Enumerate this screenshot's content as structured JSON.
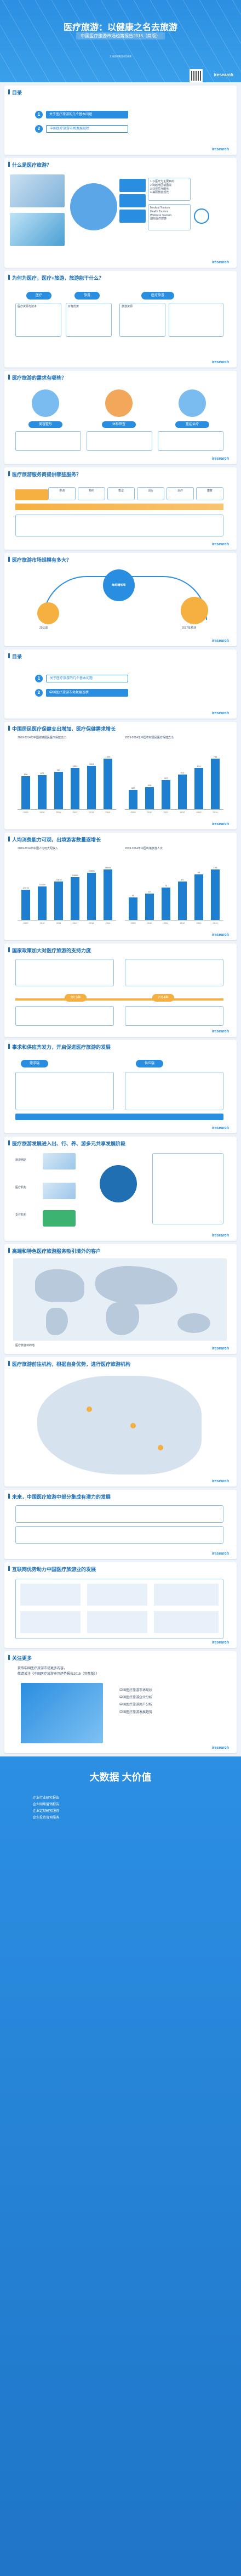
{
  "header": {
    "title": "医疗旅游：以健康之名去旅游",
    "subtitle": "中国医疗旅游市场趋势报告2015（简版）",
    "small_text": "艾瑞咨询集团研究成果",
    "brand": "iresearch"
  },
  "toc1": {
    "title": "目录",
    "items": [
      {
        "num": "1",
        "label": "关于医疗旅游的几个基本问题"
      },
      {
        "num": "2",
        "label": "中国医疗旅游市场发展现状"
      }
    ]
  },
  "s_what": {
    "title": "什么是医疗旅游？",
    "items": [
      "1 以医疗为主要目的",
      "2 跨越地区或国境",
      "3 获得医疗服务",
      "4 兼顾旅游观光"
    ],
    "right": [
      "Medical Tourism",
      "Health Tourism",
      "Wellness Tourism",
      "国际医疗旅游"
    ]
  },
  "s_why": {
    "title": "为何为医疗，医疗+旅游，旅游能干什么？",
    "labels": [
      "医疗",
      "旅游",
      "医疗旅游"
    ],
    "notes": [
      "医疗资源与技术",
      "价格优势",
      "旅游资源"
    ]
  },
  "s_who": {
    "title": "医疗旅游的需求有哪些？",
    "labels": [
      "美容整形",
      "体检筛查",
      "重症治疗"
    ]
  },
  "s_flow": {
    "title": "医疗旅游服务商提供哪些服务？",
    "steps": [
      "咨询",
      "预约",
      "签证",
      "出行",
      "治疗",
      "康复"
    ]
  },
  "s_scale": {
    "title": "医疗旅游市场规模有多大？",
    "labels": [
      "2013年",
      "2017年预测"
    ],
    "center": "年均增长率"
  },
  "toc2": {
    "title": "目录",
    "items": [
      {
        "num": "1",
        "label": "关于医疗旅游的几个基本问题"
      },
      {
        "num": "2",
        "label": "中国医疗旅游市场发展现状"
      }
    ]
  },
  "s_growth": {
    "title": "中国居民医疗保健支出增加，医疗保健需求增长",
    "left": {
      "title": "2009-2014年中国城镇居民医疗保健支出",
      "values": [
        856,
        872,
        969,
        1063,
        1118,
        1305
      ]
    },
    "right": {
      "title": "2009-2014年中国农村居民医疗保健支出",
      "values": [
        287,
        326,
        437,
        514,
        614,
        754
      ]
    },
    "cats": [
      "2009",
      "2010",
      "2011",
      "2012",
      "2013",
      "2014"
    ]
  },
  "s_outbound": {
    "title": "人均消费能力可观，出境游客数量逐增长",
    "left": {
      "title": "2009-2014年中国人均可支配收入",
      "values": [
        17175,
        19109,
        21810,
        24565,
        26955,
        28844
      ]
    },
    "right": {
      "title": "2009-2014年中国出境旅游人次",
      "values": [
        48,
        57,
        70,
        83,
        98,
        109
      ]
    },
    "cats": [
      "2009",
      "2010",
      "2011",
      "2012",
      "2013",
      "2014"
    ]
  },
  "s_policy": {
    "title": "国家政策加大对医疗旅游的支持力度",
    "years": [
      "2013年",
      "2014年"
    ]
  },
  "s_mobile": {
    "title": "事求和供应齐发力，开启促进医疗旅游的发展",
    "nodes": [
      "需求端",
      "供应端"
    ]
  },
  "s_models": {
    "title": "医疗旅游发展进入出、行、养、游多元共享发展阶段",
    "rows": [
      "旅游网站",
      "医疗机构",
      "支付机构"
    ]
  },
  "s_map": {
    "title": "高端和特色医疗旅游服务吸引境外的客户",
    "legend": "医疗旅游目的地"
  },
  "s_china": {
    "title": "医疗旅游前往机构，根据自身优势，进行医疗旅游机构"
  },
  "s_future": {
    "title": "未来，中国医疗旅游中部分集成有潜力的发展"
  },
  "s_cases": {
    "title": "互联网优势助力中国医疗旅游业的发展"
  },
  "s_report": {
    "title": "关注更多",
    "lines": [
      "获取中国医疗旅游市场更多内容，",
      "敬请关注《中国医疗旅游市场趋势报告2015（完整版）》"
    ],
    "list": [
      "中国医疗旅游市场现状",
      "中国医疗旅游企业分析",
      "中国医疗旅游用户分析",
      "中国医疗旅游发展趋势"
    ]
  },
  "footer": {
    "big": "大数据 大价值",
    "items": [
      "企业行业研究报告",
      "企业网络营销报告",
      "企业定制研究服务",
      "企业投资咨询服务"
    ]
  }
}
